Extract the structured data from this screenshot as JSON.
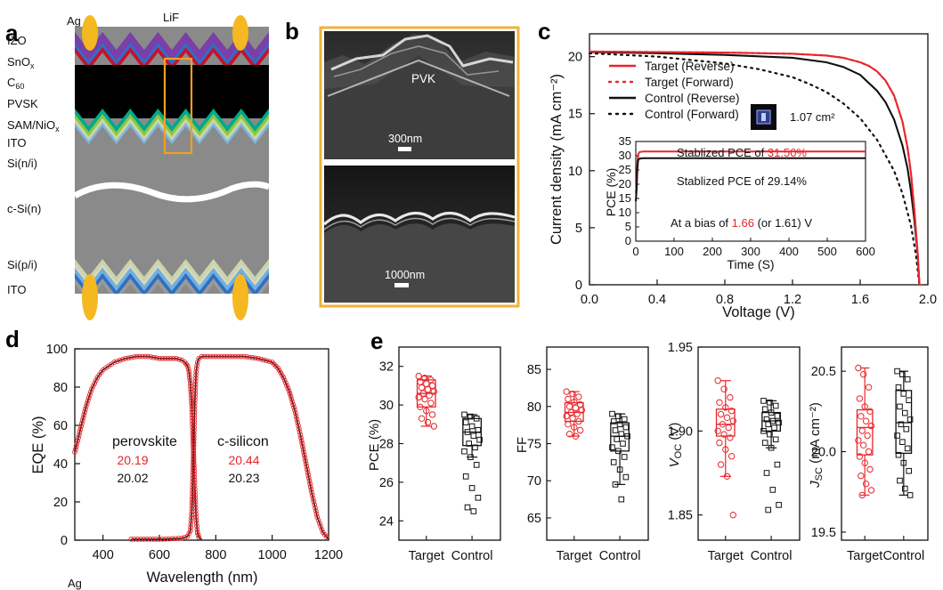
{
  "panels": {
    "a": {
      "label": "a",
      "top_label": "LiF",
      "electrode_top": "Ag",
      "electrode_bottom": "Ag",
      "layers": [
        {
          "key": "izo",
          "text": "IZO"
        },
        {
          "key": "snox",
          "text": "SnO",
          "sub": "x"
        },
        {
          "key": "c60",
          "text": "C",
          "sub": "60"
        },
        {
          "key": "pvsk",
          "text": "PVSK"
        },
        {
          "key": "samnio",
          "text": "SAM/NiO",
          "sub": "x"
        },
        {
          "key": "ito_top",
          "text": "ITO"
        },
        {
          "key": "sini",
          "text": "Si(n/i)"
        },
        {
          "key": "csi",
          "text": "c-Si(n)"
        },
        {
          "key": "sipi",
          "text": "Si(p/i)"
        },
        {
          "key": "ito_bottom",
          "text": "ITO"
        }
      ],
      "colors": {
        "izo": "#7a3fa8",
        "snox": "#2f6fc4",
        "c60": "#c8102e",
        "pvsk": "#000000",
        "samnio": "#8cc63f",
        "ito": "#c9d6a8",
        "silicon": "#8a8a8a",
        "electrode": "#f5b820",
        "zoom_box": "#f0a020"
      }
    },
    "b": {
      "label": "b",
      "top": {
        "material": "PVK",
        "scale": "300nm"
      },
      "bottom": {
        "scale": "1000nm"
      },
      "frame_color": "#f0b23a"
    },
    "c": {
      "label": "c",
      "xlabel": "Voltage (V)",
      "ylabel": "Current density (mA cm⁻²)",
      "area_label": "1.07 cm²",
      "inset": {
        "xlabel": "Time (S)",
        "ylabel": "PCE (%)",
        "target_prefix": "Stablized PCE of ",
        "target_value": "31.50%",
        "control_text": "Stablized PCE of 29.14%",
        "bias_prefix": "At a bias of ",
        "bias_target": "1.66",
        "bias_suffix": " (or 1.61) V"
      }
    },
    "d": {
      "label": "d",
      "xlabel": "Wavelength (nm)",
      "ylabel": "EQE (%)",
      "perovskite": {
        "name": "perovskite",
        "target": "20.19",
        "control": "20.02"
      },
      "silicon": {
        "name": "c-silicon",
        "target": "20.44",
        "control": "20.23"
      }
    },
    "e": {
      "label": "e",
      "categories": [
        "Target",
        "Control"
      ],
      "ylabels": {
        "pce": "PCE (%)",
        "ff": "FF",
        "voc": "V",
        "voc_sub": "OC",
        "voc_unit": " (V)",
        "jsc": "J",
        "jsc_sub": "SC",
        "jsc_unit": " (mA cm⁻²)"
      }
    }
  },
  "chart_data": [
    {
      "panel": "c",
      "type": "line",
      "title": "",
      "xlabel": "Voltage (V)",
      "ylabel": "Current density (mA cm⁻²)",
      "xlim": [
        0.0,
        2.0
      ],
      "ylim": [
        0,
        22
      ],
      "xticks": [
        "0.0",
        "0.4",
        "0.8",
        "1.2",
        "1.6",
        "2.0"
      ],
      "yticks": [
        "0",
        "5",
        "10",
        "15",
        "20"
      ],
      "legend_position": "top-left",
      "series": [
        {
          "name": "Target (Reverse)",
          "style": "solid",
          "color": "#e8262b",
          "x": [
            0,
            0.4,
            0.8,
            1.2,
            1.4,
            1.5,
            1.6,
            1.65,
            1.7,
            1.75,
            1.8,
            1.85,
            1.88,
            1.9,
            1.92,
            1.94,
            1.95
          ],
          "y": [
            20.45,
            20.4,
            20.35,
            20.25,
            20.1,
            19.9,
            19.5,
            19.2,
            18.7,
            17.9,
            16.6,
            14.3,
            12.0,
            9.8,
            6.6,
            2.7,
            0
          ]
        },
        {
          "name": "Target (Forward)",
          "style": "dotted",
          "color": "#e8262b",
          "x": [
            0,
            0.4,
            0.8,
            1.2,
            1.4,
            1.5,
            1.6,
            1.65,
            1.7,
            1.75,
            1.8,
            1.85,
            1.88,
            1.9,
            1.92,
            1.94,
            1.95
          ],
          "y": [
            20.45,
            20.4,
            20.35,
            20.25,
            20.1,
            19.9,
            19.5,
            19.2,
            18.7,
            17.9,
            16.6,
            14.3,
            12.0,
            9.8,
            6.6,
            2.7,
            0
          ]
        },
        {
          "name": "Control (Reverse)",
          "style": "solid",
          "color": "#111111",
          "x": [
            0,
            0.4,
            0.8,
            1.2,
            1.4,
            1.5,
            1.6,
            1.7,
            1.75,
            1.8,
            1.85,
            1.88,
            1.9,
            1.92,
            1.94,
            1.95
          ],
          "y": [
            20.4,
            20.3,
            20.15,
            19.9,
            19.5,
            19.1,
            18.4,
            17.0,
            16.0,
            14.5,
            12.2,
            10.2,
            8.2,
            5.7,
            2.6,
            0
          ]
        },
        {
          "name": "Control (Forward)",
          "style": "dotted",
          "color": "#111111",
          "x": [
            0,
            0.4,
            0.8,
            1.0,
            1.2,
            1.3,
            1.4,
            1.5,
            1.6,
            1.7,
            1.8,
            1.85,
            1.9,
            1.93,
            1.95
          ],
          "y": [
            20.3,
            20.0,
            19.4,
            18.9,
            18.2,
            17.6,
            16.9,
            15.9,
            14.6,
            12.7,
            10.0,
            8.0,
            5.2,
            2.6,
            0
          ]
        }
      ]
    },
    {
      "panel": "c-inset",
      "type": "line",
      "title": "",
      "xlabel": "Time (S)",
      "ylabel": "PCE (%)",
      "xlim": [
        0,
        600
      ],
      "ylim": [
        0,
        35
      ],
      "xticks": [
        "0",
        "100",
        "200",
        "300",
        "400",
        "500",
        "600"
      ],
      "yticks": [
        "0",
        "5",
        "10",
        "15",
        "20",
        "25",
        "30",
        "35"
      ],
      "series": [
        {
          "name": "Target",
          "color": "#e8262b",
          "x": [
            0,
            2,
            4,
            6,
            10,
            20,
            600
          ],
          "y": [
            17,
            20,
            27,
            30.5,
            31.3,
            31.5,
            31.5
          ]
        },
        {
          "name": "Control",
          "color": "#111111",
          "x": [
            0,
            2,
            4,
            6,
            10,
            20,
            600
          ],
          "y": [
            14,
            18,
            25,
            28.4,
            29.0,
            29.14,
            29.14
          ]
        }
      ]
    },
    {
      "panel": "d",
      "type": "line",
      "title": "",
      "xlabel": "Wavelength (nm)",
      "ylabel": "EQE (%)",
      "xlim": [
        300,
        1200
      ],
      "ylim": [
        0,
        100
      ],
      "xticks": [
        "400",
        "600",
        "800",
        "1000",
        "1200"
      ],
      "yticks": [
        "0",
        "20",
        "40",
        "60",
        "80",
        "100"
      ],
      "series": [
        {
          "name": "perovskite",
          "x": [
            300,
            320,
            340,
            360,
            380,
            400,
            420,
            440,
            460,
            480,
            500,
            520,
            540,
            560,
            580,
            600,
            620,
            640,
            660,
            680,
            690,
            700,
            705,
            710,
            715,
            720,
            725,
            730,
            735,
            740,
            750
          ],
          "y": [
            46,
            58,
            70,
            79,
            85,
            89,
            91,
            93,
            94,
            95,
            95.5,
            96,
            96,
            96,
            95.5,
            95,
            95,
            95,
            95,
            94,
            93,
            91,
            88,
            82,
            70,
            50,
            30,
            12,
            4,
            1.5,
            0.5
          ]
        },
        {
          "name": "c-silicon",
          "x": [
            500,
            600,
            680,
            700,
            710,
            715,
            720,
            725,
            730,
            735,
            740,
            750,
            760,
            780,
            800,
            850,
            900,
            950,
            1000,
            1020,
            1040,
            1060,
            1080,
            1100,
            1120,
            1140,
            1160,
            1180,
            1200
          ],
          "y": [
            0.5,
            0.5,
            1,
            2,
            5,
            15,
            40,
            70,
            88,
            93,
            95,
            96,
            96,
            96,
            96,
            96,
            96,
            95,
            93,
            90,
            85,
            78,
            68,
            55,
            40,
            25,
            12,
            4,
            0.5
          ]
        }
      ]
    },
    {
      "panel": "e-pce",
      "type": "box",
      "title": "",
      "ylabel": "PCE (%)",
      "ylim": [
        23,
        33
      ],
      "yticks": [
        "24",
        "26",
        "28",
        "30",
        "32"
      ],
      "categories": [
        "Target",
        "Control"
      ],
      "series": [
        {
          "name": "Target",
          "color": "#e8262b",
          "q1": 29.9,
          "median": 30.6,
          "q3": 31.3,
          "min": 28.9,
          "max": 31.5,
          "points": [
            31.5,
            31.4,
            31.3,
            31.2,
            31.1,
            31.0,
            30.9,
            30.8,
            30.7,
            30.6,
            30.5,
            30.4,
            30.3,
            30.1,
            29.9,
            29.7,
            29.5,
            29.3,
            29.1,
            28.9
          ]
        },
        {
          "name": "Control",
          "color": "#111111",
          "q1": 27.9,
          "median": 28.6,
          "q3": 29.3,
          "min": 27.3,
          "max": 29.5,
          "points": [
            29.5,
            29.4,
            29.3,
            29.1,
            28.9,
            28.7,
            28.6,
            28.4,
            28.2,
            28.0,
            27.8,
            27.6,
            27.3,
            26.9,
            26.3,
            25.7,
            25.2,
            24.7,
            24.5
          ]
        }
      ]
    },
    {
      "panel": "e-ff",
      "type": "box",
      "title": "",
      "ylabel": "FF",
      "ylim": [
        62,
        88
      ],
      "yticks": [
        "65",
        "70",
        "75",
        "80",
        "85"
      ],
      "categories": [
        "Target",
        "Control"
      ],
      "series": [
        {
          "name": "Target",
          "color": "#e8262b",
          "q1": 78.0,
          "median": 79.2,
          "q3": 80.5,
          "min": 76.0,
          "max": 82.0,
          "points": [
            82.0,
            81.7,
            81.3,
            81.0,
            80.6,
            80.3,
            80.0,
            79.8,
            79.5,
            79.2,
            79.0,
            78.7,
            78.4,
            78.0,
            77.6,
            77.2,
            76.8,
            76.3,
            76.0
          ]
        },
        {
          "name": "Control",
          "color": "#111111",
          "q1": 74.0,
          "median": 76.0,
          "q3": 77.8,
          "min": 69.5,
          "max": 79.0,
          "points": [
            79.0,
            78.7,
            78.3,
            78.0,
            77.6,
            77.2,
            76.8,
            76.3,
            76.0,
            75.6,
            75.0,
            74.5,
            74.0,
            73.2,
            72.5,
            71.5,
            70.5,
            69.5,
            67.5
          ]
        }
      ]
    },
    {
      "panel": "e-voc",
      "type": "box",
      "title": "",
      "ylabel": "VOC (V)",
      "ylim": [
        1.835,
        1.95
      ],
      "yticks": [
        "1.85",
        "1.90",
        "1.95"
      ],
      "categories": [
        "Target",
        "Control"
      ],
      "series": [
        {
          "name": "Target",
          "color": "#e8262b",
          "q1": 1.897,
          "median": 1.904,
          "q3": 1.913,
          "min": 1.873,
          "max": 1.93,
          "points": [
            1.93,
            1.925,
            1.92,
            1.917,
            1.914,
            1.912,
            1.91,
            1.908,
            1.906,
            1.904,
            1.902,
            1.9,
            1.898,
            1.896,
            1.893,
            1.889,
            1.885,
            1.88,
            1.873,
            1.85
          ]
        },
        {
          "name": "Control",
          "color": "#111111",
          "q1": 1.9,
          "median": 1.906,
          "q3": 1.911,
          "min": 1.89,
          "max": 1.918,
          "points": [
            1.918,
            1.917,
            1.915,
            1.913,
            1.911,
            1.909,
            1.907,
            1.906,
            1.905,
            1.904,
            1.902,
            1.9,
            1.898,
            1.895,
            1.893,
            1.89,
            1.88,
            1.875,
            1.865,
            1.856,
            1.853
          ]
        }
      ]
    },
    {
      "panel": "e-jsc",
      "type": "box",
      "title": "",
      "ylabel": "JSC (mA cm⁻²)",
      "ylim": [
        19.45,
        20.65
      ],
      "yticks": [
        "19.5",
        "20.0",
        "20.5"
      ],
      "categories": [
        "Target",
        "Control"
      ],
      "series": [
        {
          "name": "Target",
          "color": "#e8262b",
          "q1": 19.98,
          "median": 20.15,
          "q3": 20.26,
          "min": 19.73,
          "max": 20.52,
          "points": [
            20.52,
            20.48,
            20.4,
            20.33,
            20.28,
            20.25,
            20.22,
            20.19,
            20.16,
            20.13,
            20.1,
            20.07,
            20.04,
            20.0,
            19.97,
            19.93,
            19.89,
            19.85,
            19.8,
            19.76,
            19.73
          ]
        },
        {
          "name": "Control",
          "color": "#111111",
          "q1": 19.99,
          "median": 20.18,
          "q3": 20.38,
          "min": 19.73,
          "max": 20.5,
          "points": [
            20.5,
            20.48,
            20.45,
            20.4,
            20.36,
            20.32,
            20.28,
            20.24,
            20.2,
            20.17,
            20.14,
            20.1,
            20.06,
            20.02,
            19.98,
            19.93,
            19.88,
            19.82,
            19.77,
            19.73
          ]
        }
      ]
    }
  ]
}
